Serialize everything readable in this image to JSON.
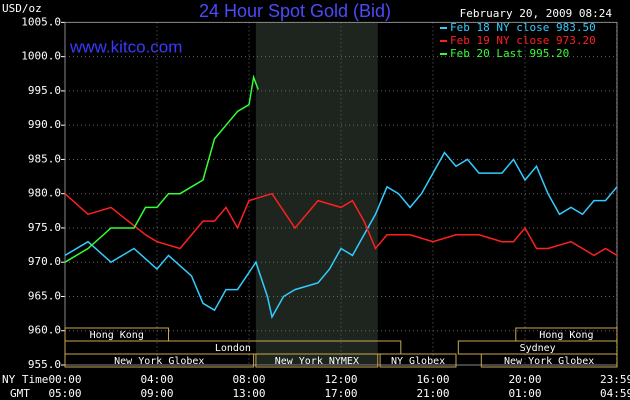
{
  "chart_data": {
    "type": "line",
    "title": "24 Hour Spot Gold (Bid)",
    "unit_label": "USD/oz",
    "website": "www.kitco.com",
    "timestamp": "February 20, 2009 08:24",
    "x_row_label": "NY Time",
    "x2_row_label": "GMT",
    "xlim": [
      0,
      24
    ],
    "ylim": [
      955,
      1005
    ],
    "grid": true,
    "xticks": [
      {
        "value": 0,
        "label": "00:00"
      },
      {
        "value": 4,
        "label": "04:00"
      },
      {
        "value": 8,
        "label": "08:00"
      },
      {
        "value": 12,
        "label": "12:00"
      },
      {
        "value": 16,
        "label": "16:00"
      },
      {
        "value": 20,
        "label": "20:00"
      },
      {
        "value": 23.98,
        "label": "23:59"
      }
    ],
    "x2tick_labels": [
      "05:00",
      "09:00",
      "13:00",
      "17:00",
      "21:00",
      "01:00",
      "04:59"
    ],
    "yticks": [
      {
        "value": 955,
        "label": "955.0"
      },
      {
        "value": 960,
        "label": "960.0"
      },
      {
        "value": 965,
        "label": "965.0"
      },
      {
        "value": 970,
        "label": "970.0"
      },
      {
        "value": 975,
        "label": "975.0"
      },
      {
        "value": 980,
        "label": "980.0"
      },
      {
        "value": 985,
        "label": "985.0"
      },
      {
        "value": 990,
        "label": "990.0"
      },
      {
        "value": 995,
        "label": "995.0"
      },
      {
        "value": 1000,
        "label": "1000.0"
      },
      {
        "value": 1005,
        "label": "1005.0"
      }
    ],
    "sessions": [
      {
        "name": "Hong Kong",
        "start": 0,
        "end": 4.5,
        "row": 1
      },
      {
        "name": "London",
        "start": 0,
        "end": 14.6,
        "row": 2
      },
      {
        "name": "New York Globex",
        "start": 0,
        "end": 8.2,
        "row": 3
      },
      {
        "name": "New York NYMEX",
        "start": 8.3,
        "end": 13.6,
        "row": 3,
        "shaded": true
      },
      {
        "name": "NY Globex",
        "start": 13.7,
        "end": 17,
        "row": 3
      },
      {
        "name": "Sydney",
        "start": 17.1,
        "end": 24,
        "row": 2
      },
      {
        "name": "Hong Kong",
        "start": 19.6,
        "end": 24,
        "row": 1
      },
      {
        "name": "New York Globex",
        "start": 18.1,
        "end": 24,
        "row": 3
      }
    ],
    "series": [
      {
        "name": "Feb 18 NY close 983.50",
        "color": "#33ccff",
        "x": [
          0,
          1,
          2,
          3,
          4,
          4.5,
          5.5,
          6,
          6.5,
          7,
          7.5,
          8.3,
          8.8,
          9,
          9.5,
          10,
          11,
          11.5,
          12,
          12.5,
          13,
          13.5,
          14,
          14.5,
          15,
          15.5,
          16,
          16.5,
          17,
          17.5,
          18,
          19,
          19.5,
          20,
          20.5,
          21,
          21.5,
          22,
          22.5,
          23,
          23.5,
          24
        ],
        "values": [
          971,
          973,
          970,
          972,
          969,
          971,
          968,
          964,
          963,
          966,
          966,
          970,
          965,
          962,
          965,
          966,
          967,
          969,
          972,
          971,
          974,
          977,
          981,
          980,
          978,
          980,
          983,
          986,
          984,
          985,
          983,
          983,
          985,
          982,
          984,
          980,
          977,
          978,
          977,
          979,
          979,
          981
        ]
      },
      {
        "name": "Feb 19 NY close 973.20",
        "color": "#ff2020",
        "x": [
          0,
          1,
          2,
          3.5,
          4,
          5,
          6,
          6.5,
          7,
          7.5,
          8,
          9,
          10,
          11,
          12,
          12.5,
          13,
          13.5,
          14,
          15,
          16,
          17,
          18,
          19,
          19.5,
          20,
          20.5,
          21,
          22,
          22.5,
          23,
          23.5,
          24
        ],
        "values": [
          980,
          977,
          978,
          974,
          973,
          972,
          976,
          976,
          978,
          975,
          979,
          980,
          975,
          979,
          978,
          979,
          976,
          972,
          974,
          974,
          973,
          974,
          974,
          973,
          973,
          975,
          972,
          972,
          973,
          972,
          971,
          972,
          971
        ]
      },
      {
        "name": "Feb 20 Last 995.20",
        "color": "#33ff33",
        "x": [
          0,
          1,
          2,
          3,
          3.5,
          4,
          4.5,
          5,
          5.5,
          6,
          6.5,
          7,
          7.5,
          8,
          8.2,
          8.4
        ],
        "values": [
          970,
          972,
          975,
          975,
          978,
          978,
          980,
          980,
          981,
          982,
          988,
          990,
          992,
          993,
          997,
          995.2
        ]
      }
    ]
  }
}
